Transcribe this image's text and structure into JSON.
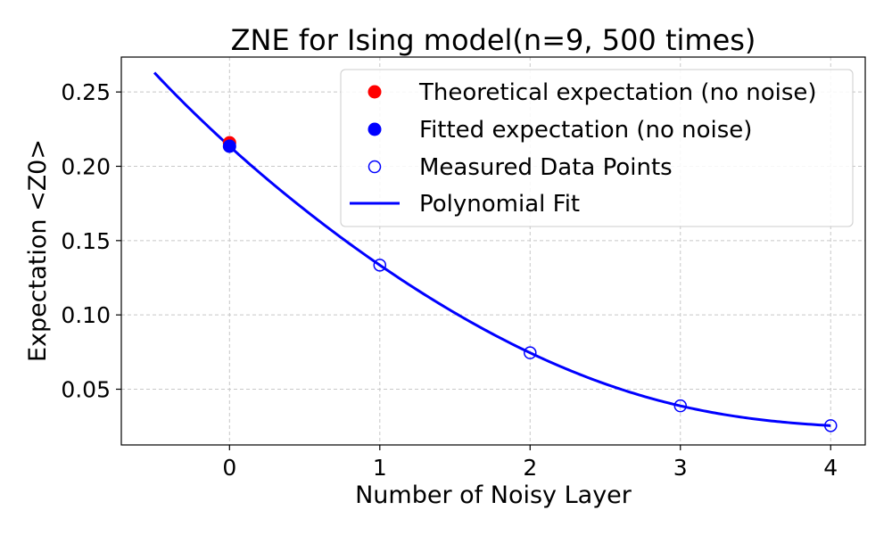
{
  "chart_data": {
    "type": "scatter",
    "title": "ZNE for Ising model(n=9, 500 times)",
    "xlabel": "Number of Noisy Layer",
    "ylabel": "Expectation <Z0>",
    "xlim": [
      -0.72,
      4.23
    ],
    "ylim": [
      0.0125,
      0.2735
    ],
    "xticks": [
      0,
      1,
      2,
      3,
      4
    ],
    "yticks": [
      0.05,
      0.1,
      0.15,
      0.2,
      0.25
    ],
    "ytick_labels": [
      "0.05",
      "0.10",
      "0.15",
      "0.20",
      "0.25"
    ],
    "grid": true,
    "legend_position": "top-right",
    "series": [
      {
        "name": "Theoretical expectation (no noise)",
        "kind": "point",
        "color": "#ff0000",
        "x": [
          0
        ],
        "y": [
          0.2158
        ]
      },
      {
        "name": "Fitted expectation (no noise)",
        "kind": "point",
        "color": "#0000ff",
        "x": [
          0
        ],
        "y": [
          0.2135
        ]
      },
      {
        "name": "Measured Data Points",
        "kind": "hollow",
        "color": "#0000ff",
        "x": [
          0,
          1,
          2,
          3,
          4
        ],
        "y": [
          0.2135,
          0.1335,
          0.0745,
          0.0388,
          0.0255
        ]
      },
      {
        "name": "Polynomial Fit",
        "kind": "line",
        "color": "#0000ff",
        "x": [
          -0.5,
          0,
          1,
          2,
          3,
          4
        ],
        "y": [
          0.263,
          0.2135,
          0.1335,
          0.0745,
          0.0388,
          0.0255
        ]
      }
    ]
  }
}
